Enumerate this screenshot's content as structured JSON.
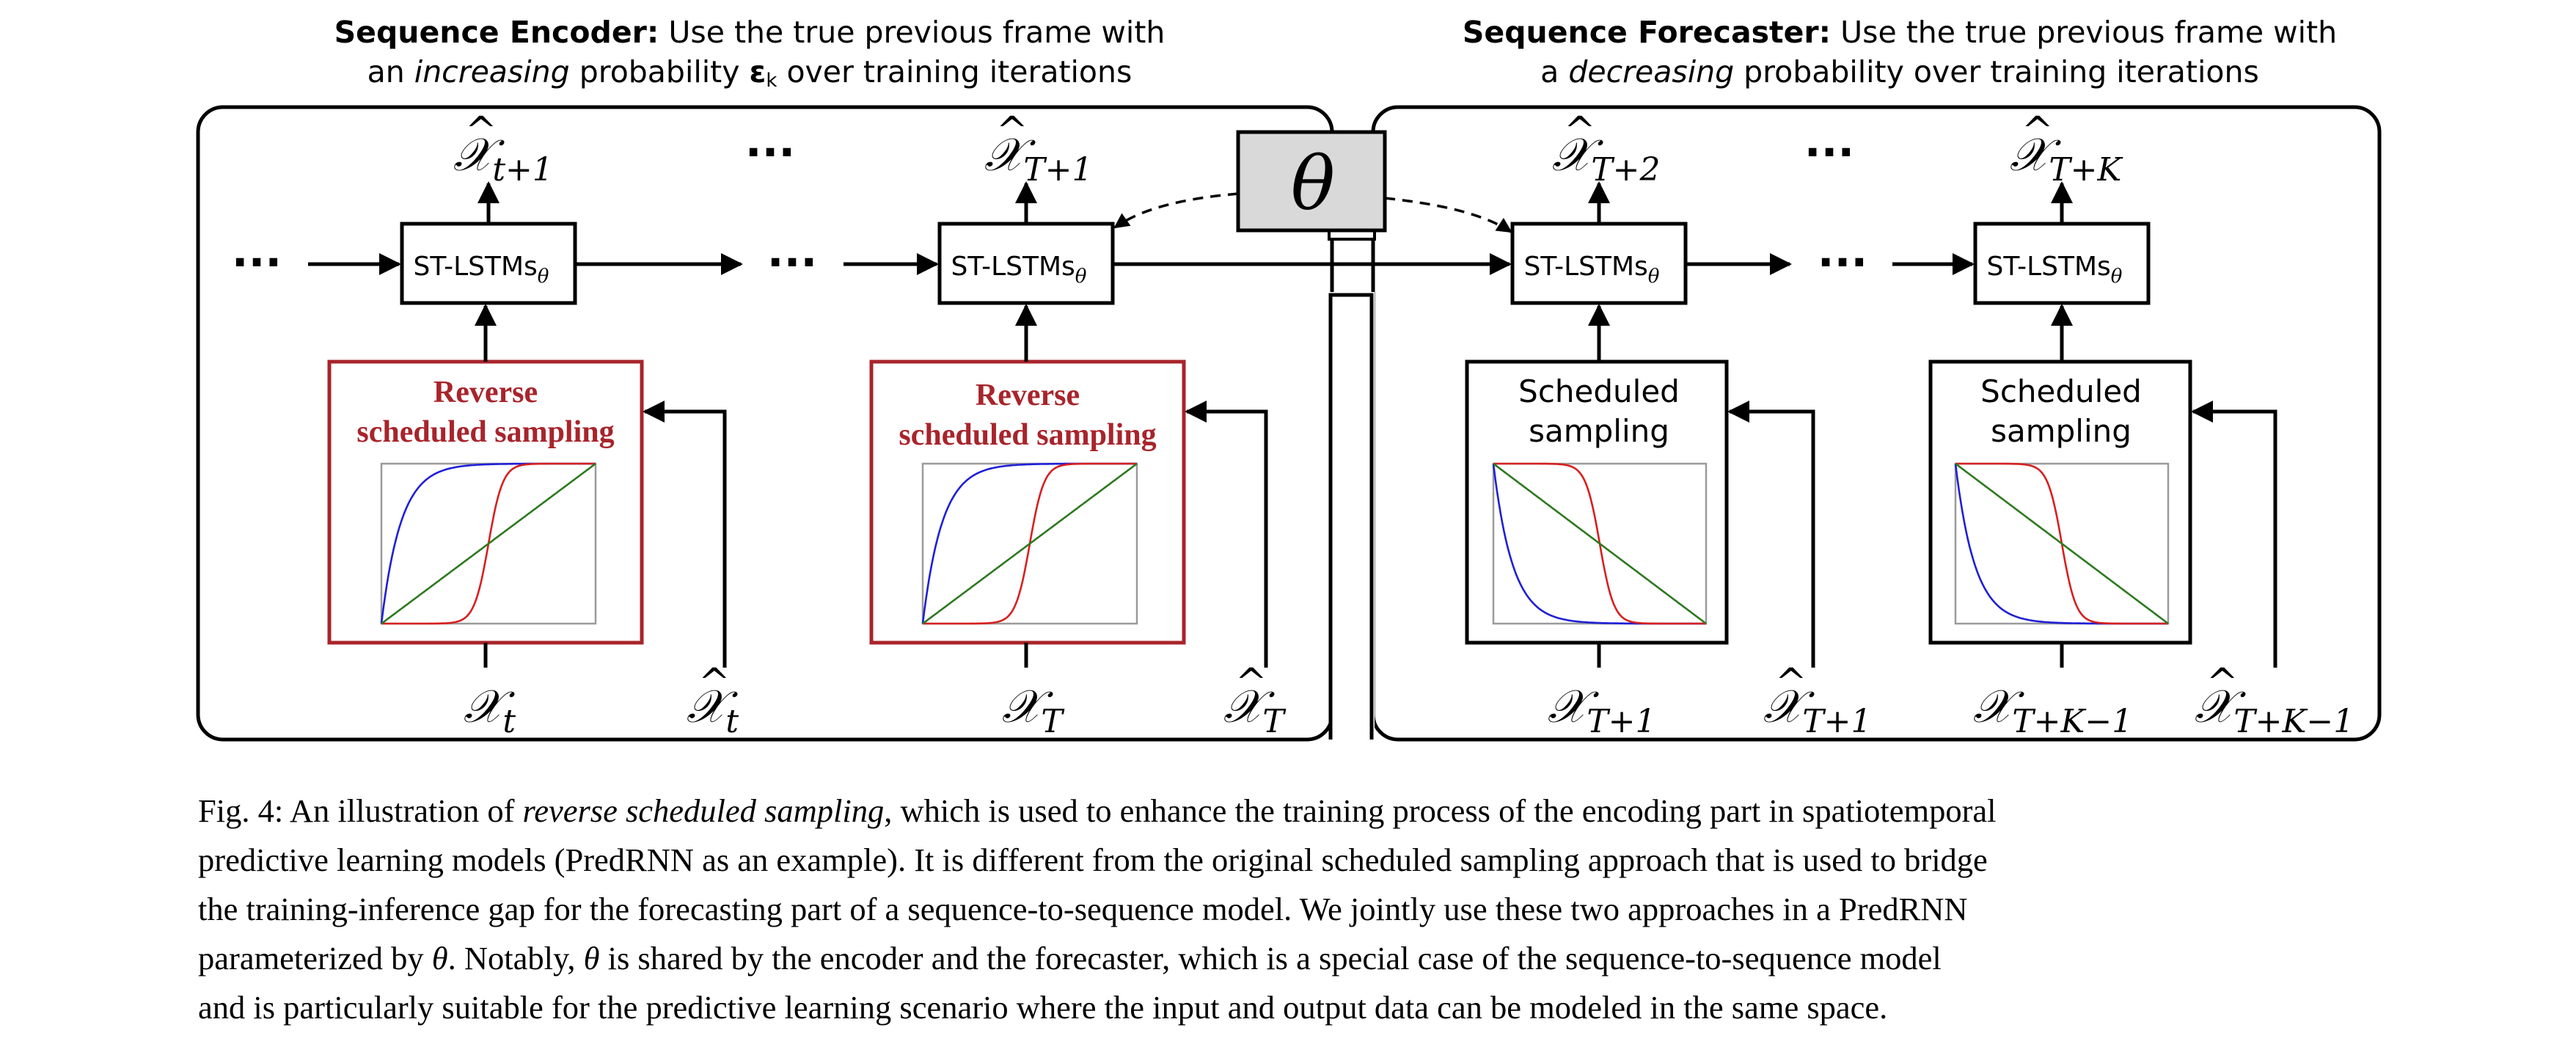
{
  "figure": {
    "encoder_header": {
      "bold": "Sequence Encoder:",
      "line1_rest": " Use the true previous frame with",
      "line2_pre": "an ",
      "line2_italic": "increasing",
      "line2_mid": " probability ",
      "epsilon": "ε",
      "epsilon_sub": "k",
      "line2_post": " over training iterations"
    },
    "forecaster_header": {
      "bold": "Sequence Forecaster:",
      "line1_rest": " Use the true previous frame with",
      "line2_pre": "a ",
      "line2_italic": "decreasing",
      "line2_post": " probability over training iterations"
    },
    "theta": "θ",
    "lstm_label": "ST-LSTMs",
    "lstm_sub": "θ",
    "ellipsis": "···",
    "reverse_sampling_line1": "Reverse",
    "reverse_sampling_line2": "scheduled sampling",
    "sampling_line1": "Scheduled",
    "sampling_line2": "sampling",
    "outputs": [
      {
        "base": "𝒳",
        "sub": "t+1"
      },
      {
        "base": "𝒳",
        "sub": "T+1"
      },
      {
        "base": "𝒳",
        "sub": "T+2"
      },
      {
        "base": "𝒳",
        "sub": "T+K"
      }
    ],
    "inputs_true": [
      {
        "base": "𝒳",
        "sub": "t"
      },
      {
        "base": "𝒳",
        "sub": "T"
      },
      {
        "base": "𝒳",
        "sub": "T+1"
      },
      {
        "base": "𝒳",
        "sub": "T+K−1"
      }
    ],
    "inputs_pred": [
      {
        "base": "𝒳",
        "sub": "t"
      },
      {
        "base": "𝒳",
        "sub": "T"
      },
      {
        "base": "𝒳",
        "sub": "T+1"
      },
      {
        "base": "𝒳",
        "sub": "T+K−1"
      }
    ],
    "colors": {
      "red_box": "#a8242b",
      "curve_blue": "#1f1fd6",
      "curve_red": "#d62020",
      "curve_green": "#2d7a1f",
      "theta_fill": "#d9d9d9"
    }
  },
  "caption": {
    "line1_pre": "Fig. 4: An illustration of ",
    "line1_italic": "reverse scheduled sampling",
    "line1_post": ", which is used to enhance the training process of the encoding part in spatiotemporal",
    "line2": "predictive learning models (PredRNN as an example). It is different from the original scheduled sampling approach that is used to bridge",
    "line3": "the training-inference gap for the forecasting part of a sequence-to-sequence model. We jointly use these two approaches in a PredRNN",
    "line4_pre": "parameterized by ",
    "line4_theta": "θ",
    "line4_mid": ". Notably, ",
    "line4_theta2": "θ",
    "line4_post": " is shared by the encoder and the forecaster, which is a special case of the sequence-to-sequence model",
    "line5": "and is particularly suitable for the predictive learning scenario where the input and output data can be modeled in the same space."
  }
}
